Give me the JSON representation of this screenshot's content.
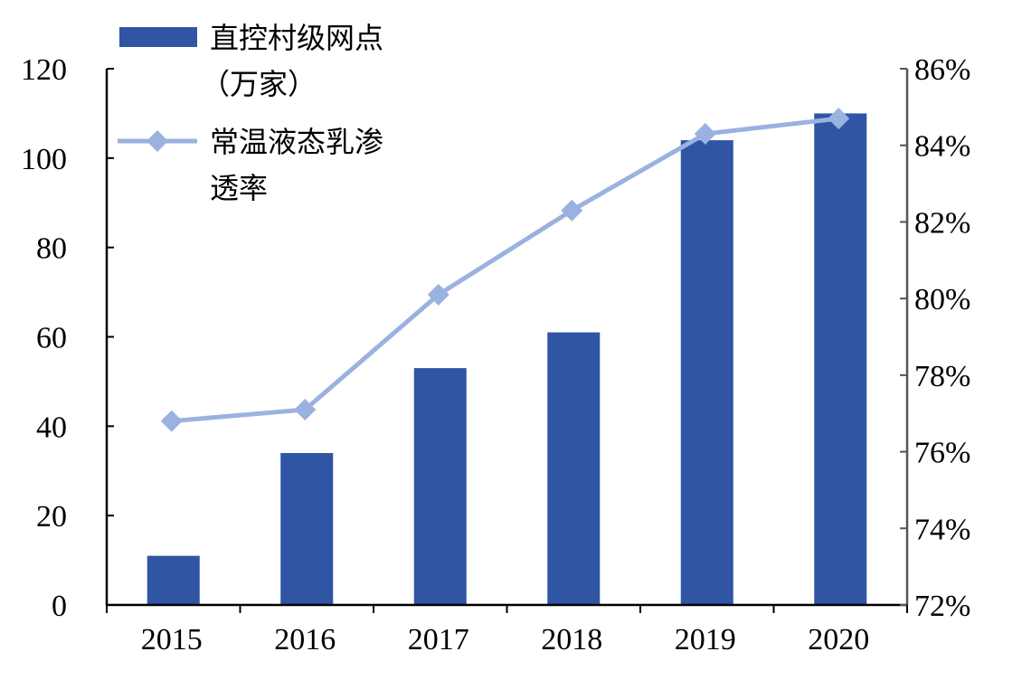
{
  "chart_data": {
    "type": "bar",
    "categories": [
      "2015",
      "2016",
      "2017",
      "2018",
      "2019",
      "2020"
    ],
    "series": [
      {
        "name": "直控村级网点（万家）",
        "type": "bar",
        "axis": "left",
        "color": "#2f55a4",
        "values": [
          11,
          34,
          53,
          61,
          104,
          110
        ]
      },
      {
        "name": "常温液态乳渗透率",
        "type": "line",
        "axis": "right",
        "color": "#9ab2e0",
        "values": [
          76.8,
          77.1,
          80.1,
          82.3,
          84.3,
          84.7
        ]
      }
    ],
    "y_left": {
      "min": 0,
      "max": 120,
      "ticks": [
        "0",
        "20",
        "40",
        "60",
        "80",
        "100",
        "120"
      ]
    },
    "y_right": {
      "min": 72,
      "max": 86,
      "ticks": [
        "72%",
        "74%",
        "76%",
        "78%",
        "80%",
        "82%",
        "84%",
        "86%"
      ]
    },
    "grid": false,
    "legend_position": "top-left",
    "legend": {
      "bar_lines": [
        "直控村级网点",
        "（万家）"
      ],
      "line_lines": [
        "常温液态乳渗",
        "透率"
      ]
    }
  }
}
